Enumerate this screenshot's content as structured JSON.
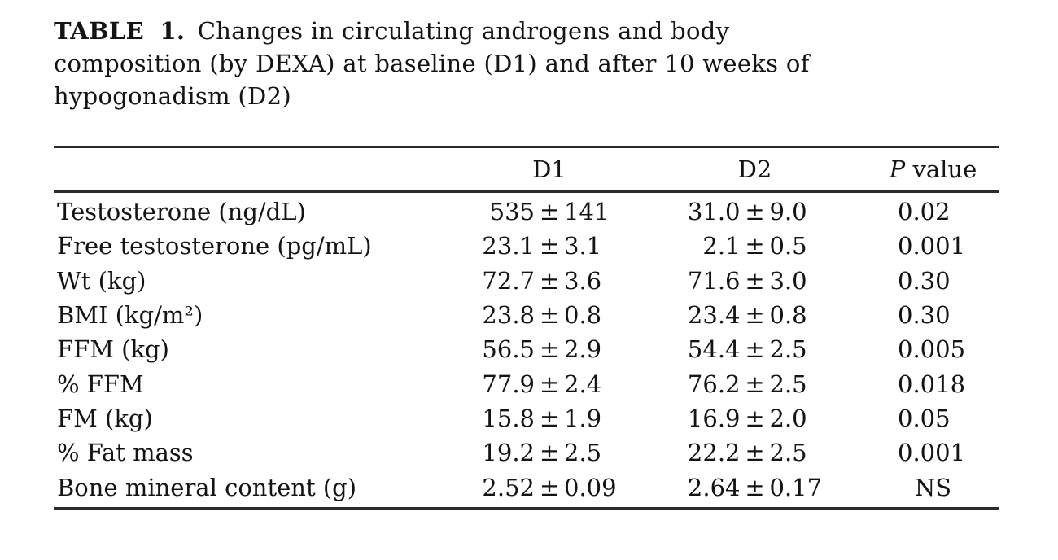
{
  "page": {
    "background": "#ffffff",
    "text_color": "#141414",
    "rule_color": "#2b2b2b"
  },
  "table": {
    "label": "TABLE 1.",
    "title_lines": [
      " Changes in circulating androgens and body",
      "composition (by DEXA) at baseline (D1) and after 10 weeks of",
      "hypogonadism (D2)"
    ],
    "columns": {
      "stub": "",
      "d1": "D1",
      "d2": "D2",
      "p_italic": "P",
      "p_rest": " value"
    },
    "rows": [
      {
        "label": "Testosterone (ng/dL)",
        "d1": "535 ± 141",
        "d2": "31.0 ± 9.0",
        "p": "0.02"
      },
      {
        "label": "Free testosterone (pg/mL)",
        "d1": "23.1 ± 3.1",
        "d2": "2.1 ± 0.5",
        "p": "0.001"
      },
      {
        "label": "Wt (kg)",
        "d1": "72.7 ± 3.6",
        "d2": "71.6 ± 3.0",
        "p": "0.30"
      },
      {
        "label": "BMI (kg/m²)",
        "d1": "23.8 ± 0.8",
        "d2": "23.4 ± 0.8",
        "p": "0.30"
      },
      {
        "label": "FFM (kg)",
        "d1": "56.5 ± 2.9",
        "d2": "54.4 ± 2.5",
        "p": "0.005"
      },
      {
        "label": "% FFM",
        "d1": "77.9 ± 2.4",
        "d2": "76.2 ± 2.5",
        "p": "0.018"
      },
      {
        "label": "FM (kg)",
        "d1": "15.8 ± 1.9",
        "d2": "16.9 ± 2.0",
        "p": "0.05"
      },
      {
        "label": "% Fat mass",
        "d1": "19.2 ± 2.5",
        "d2": "22.2 ± 2.5",
        "p": "0.001"
      },
      {
        "label": "Bone mineral content (g)",
        "d1": "2.52 ± 0.09",
        "d2": "2.64 ± 0.17",
        "p": "NS"
      }
    ]
  }
}
